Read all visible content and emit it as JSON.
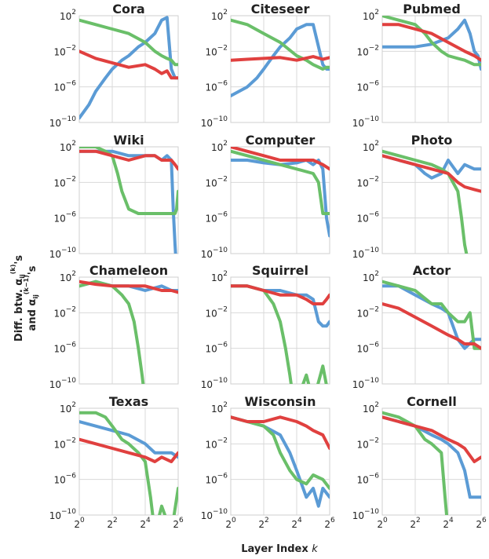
{
  "xlabel": "Layer Index",
  "xlabel_var": "k",
  "ylabel_line1": "Diff. btw. α",
  "ylabel_sup1": "(k)",
  "ylabel_sub1": "ij",
  "ylabel_tail1": "'s",
  "ylabel_line2": "and α",
  "ylabel_sup2": "(k−1)",
  "ylabel_sub2": "ij",
  "ylabel_tail2": "'s",
  "ytick_labels": [
    {
      "base": "10",
      "exp": "2"
    },
    {
      "base": "10",
      "exp": "−2"
    },
    {
      "base": "10",
      "exp": "−6"
    },
    {
      "base": "10",
      "exp": "−10"
    }
  ],
  "xtick_labels": [
    {
      "base": "2",
      "exp": "0"
    },
    {
      "base": "2",
      "exp": "2"
    },
    {
      "base": "2",
      "exp": "4"
    },
    {
      "base": "2",
      "exp": "6"
    }
  ],
  "colors": {
    "blue": "#5b9bd5",
    "green": "#6abf69",
    "red": "#e0403f"
  },
  "chart_data": [
    {
      "type": "line",
      "title": "Cora",
      "xscale": "log2",
      "yscale": "log10",
      "xlim": [
        1,
        64
      ],
      "ylim": [
        1e-10,
        100
      ],
      "grid": true,
      "series": [
        {
          "color": "#5b9bd5",
          "x": [
            1,
            1.5,
            2,
            3,
            4,
            6,
            8,
            12,
            16,
            24,
            32,
            40,
            48,
            56,
            64
          ],
          "y": [
            -9.5,
            -8,
            -6.5,
            -5,
            -4,
            -3,
            -2.5,
            -1.5,
            -1,
            0,
            1.5,
            1.8,
            -4,
            -5,
            -5
          ]
        },
        {
          "color": "#6abf69",
          "x": [
            1,
            2,
            4,
            8,
            16,
            24,
            32,
            40,
            48,
            56,
            64
          ],
          "y": [
            1.5,
            1,
            0.5,
            0,
            -1,
            -2,
            -2.5,
            -2.8,
            -3,
            -3.5,
            -3.5
          ]
        },
        {
          "color": "#e0403f",
          "x": [
            1,
            2,
            4,
            8,
            16,
            24,
            32,
            40,
            48,
            56,
            64
          ],
          "y": [
            -2,
            -2.8,
            -3.3,
            -3.8,
            -3.5,
            -4,
            -4.5,
            -4.2,
            -5,
            -5,
            -5
          ]
        }
      ]
    },
    {
      "type": "line",
      "title": "Citeseer",
      "xscale": "log2",
      "yscale": "log10",
      "xlim": [
        1,
        64
      ],
      "ylim": [
        1e-10,
        100
      ],
      "grid": true,
      "series": [
        {
          "color": "#5b9bd5",
          "x": [
            1,
            2,
            3,
            4,
            6,
            8,
            12,
            16,
            24,
            32,
            48,
            56,
            64
          ],
          "y": [
            -7,
            -6,
            -5,
            -4,
            -2.5,
            -1.5,
            -0.5,
            0.5,
            1,
            1,
            -3.5,
            -4,
            -4
          ]
        },
        {
          "color": "#6abf69",
          "x": [
            1,
            2,
            4,
            8,
            16,
            24,
            32,
            48,
            56,
            64
          ],
          "y": [
            1.5,
            1,
            0,
            -1,
            -2.5,
            -3,
            -3.5,
            -4,
            -3.8,
            -3.8
          ]
        },
        {
          "color": "#e0403f",
          "x": [
            1,
            2,
            4,
            8,
            16,
            32,
            48,
            64
          ],
          "y": [
            -3,
            -2.9,
            -2.8,
            -2.7,
            -3,
            -2.6,
            -2.9,
            -2.7
          ]
        }
      ]
    },
    {
      "type": "line",
      "title": "Pubmed",
      "xscale": "log2",
      "yscale": "log10",
      "xlim": [
        1,
        64
      ],
      "ylim": [
        1e-10,
        100
      ],
      "grid": true,
      "series": [
        {
          "color": "#5b9bd5",
          "x": [
            1,
            2,
            4,
            8,
            16,
            24,
            32,
            40,
            48,
            56,
            64
          ],
          "y": [
            -1.5,
            -1.5,
            -1.5,
            -1.2,
            -0.5,
            0.5,
            1.5,
            0,
            -2,
            -2.5,
            -4
          ]
        },
        {
          "color": "#6abf69",
          "x": [
            1,
            2,
            4,
            6,
            8,
            12,
            16,
            24,
            32,
            48,
            64
          ],
          "y": [
            2,
            1.5,
            1,
            0,
            -1,
            -2,
            -2.5,
            -2.8,
            -3,
            -3.5,
            -3.5
          ]
        },
        {
          "color": "#e0403f",
          "x": [
            1,
            2,
            4,
            8,
            16,
            32,
            48,
            64
          ],
          "y": [
            1,
            1,
            0.5,
            0,
            -1,
            -2,
            -2.5,
            -3
          ]
        }
      ]
    },
    {
      "type": "line",
      "title": "Wiki",
      "xscale": "log2",
      "yscale": "log10",
      "xlim": [
        1,
        64
      ],
      "ylim": [
        1e-10,
        100
      ],
      "grid": true,
      "series": [
        {
          "color": "#5b9bd5",
          "x": [
            1,
            2,
            4,
            8,
            16,
            24,
            32,
            40,
            48,
            52,
            56,
            60,
            64
          ],
          "y": [
            1.5,
            1.5,
            1.5,
            1,
            1,
            1,
            0.5,
            1,
            0.5,
            -5,
            -9,
            -12,
            -12
          ]
        },
        {
          "color": "#6abf69",
          "x": [
            1,
            2,
            3,
            4,
            5,
            6,
            8,
            12,
            16,
            32,
            56,
            60,
            64
          ],
          "y": [
            2,
            2,
            1.5,
            1,
            -1,
            -3,
            -5,
            -5.5,
            -5.5,
            -5.5,
            -5.5,
            -5,
            -3
          ]
        },
        {
          "color": "#e0403f",
          "x": [
            1,
            2,
            4,
            8,
            16,
            24,
            32,
            48,
            56,
            64
          ],
          "y": [
            1.5,
            1.5,
            1,
            0.5,
            1,
            1,
            0.5,
            0.5,
            0,
            -0.5
          ]
        }
      ]
    },
    {
      "type": "line",
      "title": "Computer",
      "xscale": "log2",
      "yscale": "log10",
      "xlim": [
        1,
        64
      ],
      "ylim": [
        1e-10,
        100
      ],
      "grid": true,
      "series": [
        {
          "color": "#5b9bd5",
          "x": [
            1,
            2,
            4,
            8,
            16,
            24,
            32,
            40,
            48,
            56,
            64
          ],
          "y": [
            0.5,
            0.5,
            0.2,
            0,
            0.2,
            0.5,
            0,
            0.5,
            -0.5,
            -6,
            -8
          ]
        },
        {
          "color": "#6abf69",
          "x": [
            1,
            2,
            4,
            8,
            16,
            32,
            40,
            48,
            56,
            64
          ],
          "y": [
            1.5,
            1,
            0.5,
            0,
            -0.5,
            -1,
            -2,
            -5.5,
            -5.5,
            -5.5
          ]
        },
        {
          "color": "#e0403f",
          "x": [
            1,
            2,
            4,
            8,
            16,
            32,
            48,
            64
          ],
          "y": [
            2,
            1.5,
            1,
            0.5,
            0.5,
            0.5,
            0,
            -0.5
          ]
        }
      ]
    },
    {
      "type": "line",
      "title": "Photo",
      "xscale": "log2",
      "yscale": "log10",
      "xlim": [
        1,
        64
      ],
      "ylim": [
        1e-10,
        100
      ],
      "grid": true,
      "series": [
        {
          "color": "#5b9bd5",
          "x": [
            1,
            2,
            4,
            6,
            8,
            12,
            16,
            24,
            32,
            48,
            64
          ],
          "y": [
            1,
            0.5,
            0,
            -1,
            -1.5,
            -1,
            0.5,
            -1,
            0,
            -0.5,
            -0.5
          ]
        },
        {
          "color": "#6abf69",
          "x": [
            1,
            2,
            4,
            8,
            12,
            16,
            24,
            28,
            32,
            40
          ],
          "y": [
            1.5,
            1,
            0.5,
            0,
            -0.5,
            -1,
            -3,
            -6,
            -9,
            -12
          ]
        },
        {
          "color": "#e0403f",
          "x": [
            1,
            2,
            4,
            8,
            16,
            24,
            32,
            48,
            64
          ],
          "y": [
            1,
            0.5,
            0,
            -0.5,
            -1,
            -2,
            -2.5,
            -2.8,
            -3
          ]
        }
      ]
    },
    {
      "type": "line",
      "title": "Chameleon",
      "xscale": "log2",
      "yscale": "log10",
      "xlim": [
        1,
        64
      ],
      "ylim": [
        1e-10,
        100
      ],
      "grid": true,
      "series": [
        {
          "color": "#5b9bd5",
          "x": [
            1,
            2,
            4,
            8,
            16,
            32,
            48,
            64
          ],
          "y": [
            1,
            1.5,
            1,
            1,
            0.5,
            1,
            0.5,
            0.5
          ]
        },
        {
          "color": "#6abf69",
          "x": [
            1,
            2,
            4,
            6,
            8,
            10,
            12,
            14,
            16
          ],
          "y": [
            1,
            1.5,
            1,
            0,
            -1,
            -3,
            -6,
            -9,
            -12
          ]
        },
        {
          "color": "#e0403f",
          "x": [
            1,
            2,
            4,
            8,
            16,
            32,
            48,
            64
          ],
          "y": [
            1.5,
            1.2,
            1,
            1,
            1,
            0.5,
            0.5,
            0.3
          ]
        }
      ]
    },
    {
      "type": "line",
      "title": "Squirrel",
      "xscale": "log2",
      "yscale": "log10",
      "xlim": [
        1,
        64
      ],
      "ylim": [
        1e-10,
        100
      ],
      "grid": true,
      "series": [
        {
          "color": "#5b9bd5",
          "x": [
            1,
            2,
            4,
            8,
            16,
            24,
            32,
            40,
            48,
            56,
            64
          ],
          "y": [
            1,
            1,
            0.5,
            0.5,
            0,
            0,
            -0.5,
            -3,
            -3.5,
            -3.5,
            -3
          ]
        },
        {
          "color": "#6abf69",
          "x": [
            1,
            2,
            4,
            6,
            8,
            10,
            12,
            14,
            16,
            24,
            32,
            48,
            64
          ],
          "y": [
            1,
            1,
            0.5,
            -1,
            -3,
            -6,
            -9,
            -12,
            -12,
            -9,
            -12,
            -8,
            -12
          ]
        },
        {
          "color": "#e0403f",
          "x": [
            1,
            2,
            4,
            8,
            16,
            24,
            32,
            40,
            48,
            56,
            64
          ],
          "y": [
            1,
            1,
            0.5,
            0,
            0,
            -0.5,
            -1,
            -1,
            -1,
            -0.5,
            0
          ]
        }
      ]
    },
    {
      "type": "line",
      "title": "Actor",
      "xscale": "log2",
      "yscale": "log10",
      "xlim": [
        1,
        64
      ],
      "ylim": [
        1e-10,
        100
      ],
      "grid": true,
      "series": [
        {
          "color": "#5b9bd5",
          "x": [
            1,
            2,
            4,
            8,
            12,
            16,
            24,
            32,
            48,
            64
          ],
          "y": [
            1,
            1,
            0,
            -1,
            -1.5,
            -2,
            -5,
            -6,
            -5,
            -5
          ]
        },
        {
          "color": "#6abf69",
          "x": [
            1,
            2,
            4,
            8,
            12,
            16,
            24,
            32,
            40,
            48,
            64
          ],
          "y": [
            1.5,
            1,
            0.5,
            -1,
            -1,
            -2,
            -3,
            -3,
            -2,
            -6,
            -6
          ]
        },
        {
          "color": "#e0403f",
          "x": [
            1,
            2,
            4,
            8,
            16,
            24,
            32,
            48,
            64
          ],
          "y": [
            -1,
            -1.5,
            -2.5,
            -3.5,
            -4.5,
            -5,
            -5.5,
            -5.5,
            -6
          ]
        }
      ]
    },
    {
      "type": "line",
      "title": "Texas",
      "xscale": "log2",
      "yscale": "log10",
      "xlim": [
        1,
        64
      ],
      "ylim": [
        1e-10,
        100
      ],
      "grid": true,
      "series": [
        {
          "color": "#5b9bd5",
          "x": [
            1,
            2,
            4,
            8,
            16,
            24,
            32,
            48,
            64
          ],
          "y": [
            0.5,
            0,
            -0.5,
            -1,
            -2,
            -3,
            -3,
            -3,
            -3.5
          ]
        },
        {
          "color": "#6abf69",
          "x": [
            1,
            2,
            3,
            4,
            6,
            8,
            12,
            16,
            20,
            24,
            32,
            48,
            64
          ],
          "y": [
            1.5,
            1.5,
            1,
            0,
            -1.5,
            -2,
            -3,
            -4,
            -8,
            -12,
            -9,
            -12,
            -7
          ]
        },
        {
          "color": "#e0403f",
          "x": [
            1,
            2,
            4,
            8,
            16,
            24,
            32,
            48,
            64
          ],
          "y": [
            -1.5,
            -2,
            -2.5,
            -3,
            -3.5,
            -4,
            -3.5,
            -4,
            -3
          ]
        }
      ]
    },
    {
      "type": "line",
      "title": "Wisconsin",
      "xscale": "log2",
      "yscale": "log10",
      "xlim": [
        1,
        64
      ],
      "ylim": [
        1e-10,
        100
      ],
      "grid": true,
      "series": [
        {
          "color": "#5b9bd5",
          "x": [
            1,
            2,
            4,
            8,
            12,
            16,
            24,
            32,
            40,
            48,
            64
          ],
          "y": [
            1,
            0.5,
            0,
            -1,
            -3,
            -5,
            -8,
            -7,
            -9,
            -7,
            -8
          ]
        },
        {
          "color": "#6abf69",
          "x": [
            1,
            2,
            4,
            6,
            8,
            12,
            16,
            24,
            32,
            48,
            64
          ],
          "y": [
            1,
            0.5,
            0,
            -1,
            -3,
            -5,
            -6,
            -6.5,
            -5.5,
            -6,
            -7
          ]
        },
        {
          "color": "#e0403f",
          "x": [
            1,
            2,
            4,
            8,
            16,
            24,
            32,
            48,
            64
          ],
          "y": [
            1,
            0.5,
            0.5,
            1,
            0.5,
            0,
            -0.5,
            -1,
            -2.5
          ]
        }
      ]
    },
    {
      "type": "line",
      "title": "Cornell",
      "xscale": "log2",
      "yscale": "log10",
      "xlim": [
        1,
        64
      ],
      "ylim": [
        1e-10,
        100
      ],
      "grid": true,
      "series": [
        {
          "color": "#5b9bd5",
          "x": [
            1,
            2,
            4,
            8,
            12,
            16,
            24,
            32,
            40,
            48,
            64
          ],
          "y": [
            1,
            0.5,
            0,
            -1,
            -1.5,
            -2,
            -3,
            -5,
            -8,
            -8,
            -8
          ]
        },
        {
          "color": "#6abf69",
          "x": [
            1,
            2,
            4,
            6,
            8,
            12,
            14,
            16
          ],
          "y": [
            1.5,
            1,
            0,
            -1.5,
            -2,
            -3,
            -8,
            -12
          ]
        },
        {
          "color": "#e0403f",
          "x": [
            1,
            2,
            4,
            8,
            16,
            24,
            32,
            48,
            64
          ],
          "y": [
            1,
            0.5,
            0,
            -0.5,
            -1.5,
            -2,
            -2.5,
            -4,
            -3.5
          ]
        }
      ]
    }
  ]
}
